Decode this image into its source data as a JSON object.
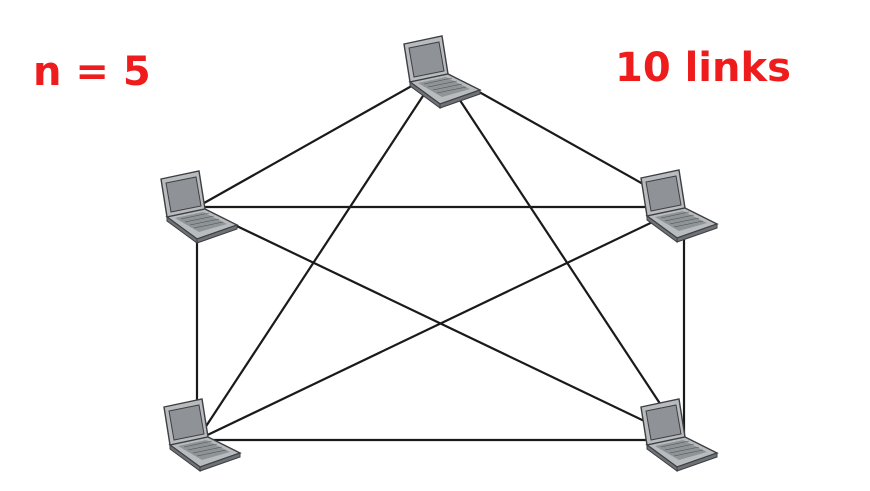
{
  "labels": {
    "n": "n = 5",
    "links": "10 links"
  },
  "colors": {
    "label": "#ee1c1c",
    "link": "#1a1a1a",
    "laptop_body": "#b9bcbf",
    "laptop_dark": "#6e7276",
    "laptop_screen": "#8f9397",
    "laptop_outline": "#3d3f42"
  },
  "nodes": [
    {
      "id": "top",
      "icon": "laptop-icon"
    },
    {
      "id": "upper-left",
      "icon": "laptop-icon"
    },
    {
      "id": "upper-right",
      "icon": "laptop-icon"
    },
    {
      "id": "lower-left",
      "icon": "laptop-icon"
    },
    {
      "id": "lower-right",
      "icon": "laptop-icon"
    }
  ],
  "links": [
    [
      "top",
      "upper-left"
    ],
    [
      "top",
      "upper-right"
    ],
    [
      "top",
      "lower-left"
    ],
    [
      "top",
      "lower-right"
    ],
    [
      "upper-left",
      "upper-right"
    ],
    [
      "upper-left",
      "lower-left"
    ],
    [
      "upper-left",
      "lower-right"
    ],
    [
      "upper-right",
      "lower-left"
    ],
    [
      "upper-right",
      "lower-right"
    ],
    [
      "lower-left",
      "lower-right"
    ]
  ]
}
